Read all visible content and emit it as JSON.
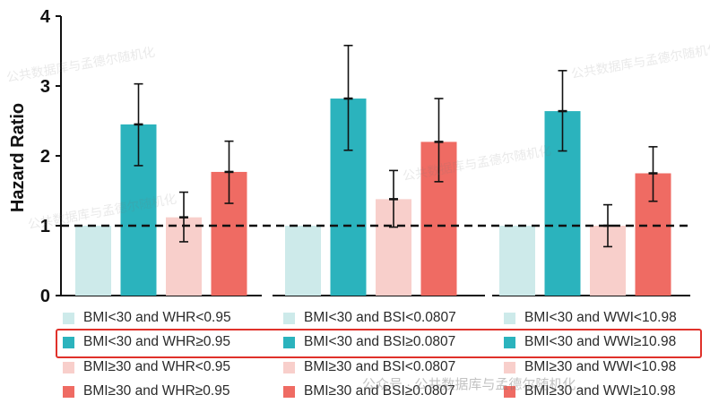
{
  "chart_data": {
    "type": "bar",
    "ylabel": "Hazard Ratio",
    "ylim": [
      0,
      4
    ],
    "yticks": [
      0,
      1,
      2,
      3,
      4
    ],
    "reference_line": 1,
    "groups": [
      {
        "bars": [
          {
            "label": "BMI<30 and WHR<0.95",
            "value": 1.0,
            "ci": null,
            "color": "#cdeaea"
          },
          {
            "label": "BMI<30 and WHR≥0.95",
            "value": 2.45,
            "ci": [
              1.86,
              3.03
            ],
            "color": "#2bb3bd"
          },
          {
            "label": "BMI≥30 and WHR<0.95",
            "value": 1.12,
            "ci": [
              0.77,
              1.48
            ],
            "color": "#f8cfcb"
          },
          {
            "label": "BMI≥30 and WHR≥0.95",
            "value": 1.77,
            "ci": [
              1.32,
              2.21
            ],
            "color": "#ef6b63"
          }
        ]
      },
      {
        "bars": [
          {
            "label": "BMI<30 and BSI<0.0807",
            "value": 1.0,
            "ci": null,
            "color": "#cdeaea"
          },
          {
            "label": "BMI<30 and BSI≥0.0807",
            "value": 2.82,
            "ci": [
              2.08,
              3.58
            ],
            "color": "#2bb3bd"
          },
          {
            "label": "BMI≥30 and BSI<0.0807",
            "value": 1.38,
            "ci": [
              0.98,
              1.79
            ],
            "color": "#f8cfcb"
          },
          {
            "label": "BMI≥30 and BSI≥0.0807",
            "value": 2.2,
            "ci": [
              1.63,
              2.82
            ],
            "color": "#ef6b63"
          }
        ]
      },
      {
        "bars": [
          {
            "label": "BMI<30 and WWI<10.98",
            "value": 1.0,
            "ci": null,
            "color": "#cdeaea"
          },
          {
            "label": "BMI<30 and WWI≥10.98",
            "value": 2.64,
            "ci": [
              2.07,
              3.22
            ],
            "color": "#2bb3bd"
          },
          {
            "label": "BMI≥30 and WWI<10.98",
            "value": 1.0,
            "ci": [
              0.7,
              1.3
            ],
            "color": "#f8cfcb"
          },
          {
            "label": "BMI≥30 and WWI≥10.98",
            "value": 1.75,
            "ci": [
              1.35,
              2.13
            ],
            "color": "#ef6b63"
          }
        ]
      }
    ],
    "legend": {
      "placement": "bottom",
      "highlighted_row": 1,
      "highlight_color": "#e0312a"
    }
  },
  "watermark": "公众号 · 公共数据库与孟德尔随机化",
  "watermark_short": "公共数据库与孟德尔随机化"
}
